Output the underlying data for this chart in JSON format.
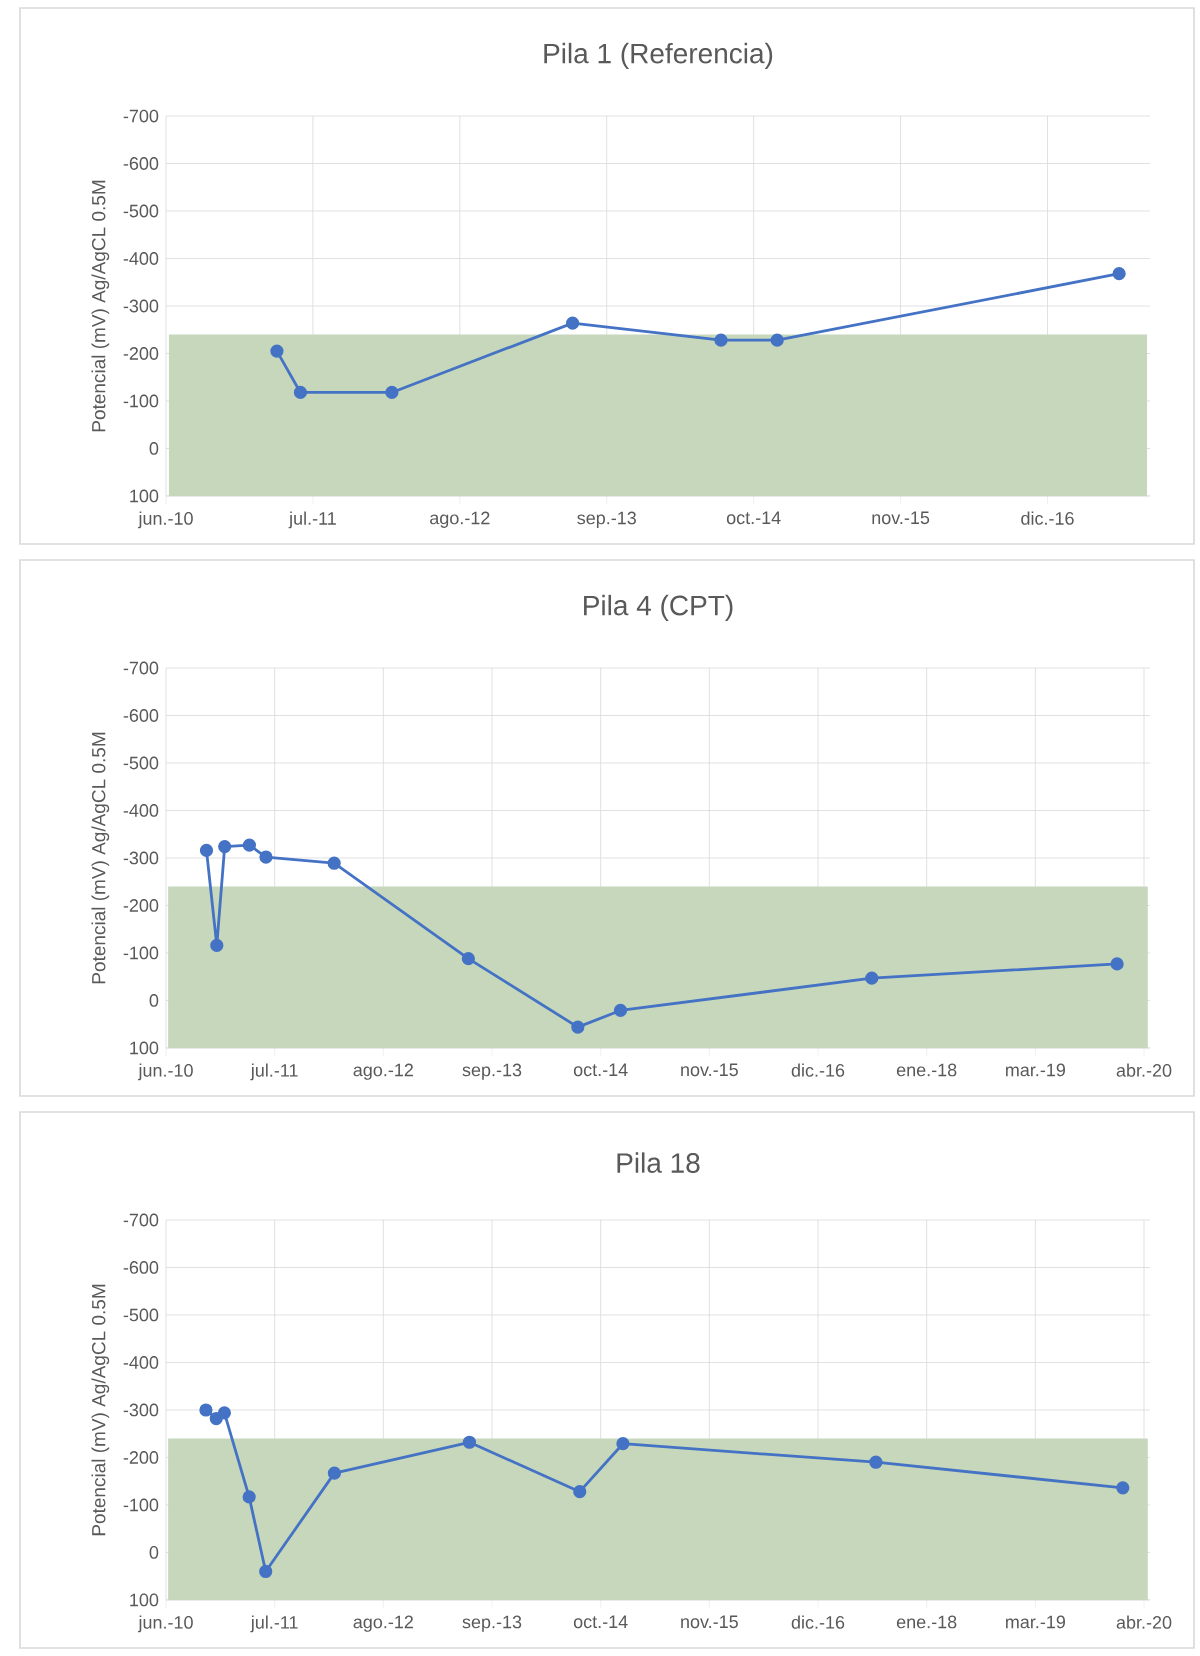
{
  "chart_data": [
    {
      "type": "line",
      "title": "Pila 1 (Referencia)",
      "ylabel": "Potencial (mV) Ag/AgCL 0.5M",
      "xlim": [
        "2010-06-01",
        "2017-10-01"
      ],
      "ylim": [
        100,
        -700
      ],
      "xticks": [
        {
          "value": "2010-06-01",
          "label": "jun.-10"
        },
        {
          "value": "2011-07-06",
          "label": "jul.-11"
        },
        {
          "value": "2012-08-09",
          "label": "ago.-12"
        },
        {
          "value": "2013-09-13",
          "label": "sep.-13"
        },
        {
          "value": "2014-10-18",
          "label": "oct.-14"
        },
        {
          "value": "2015-11-22",
          "label": "nov.-15"
        },
        {
          "value": "2016-12-26",
          "label": "dic.-16"
        }
      ],
      "yticks": [
        -700,
        -600,
        -500,
        -400,
        -300,
        -200,
        -100,
        0,
        100
      ],
      "grid": true,
      "marker": "circle",
      "bands": [
        {
          "axis": "y",
          "from": 100,
          "to": -240,
          "color": "#c6d7bb"
        }
      ],
      "series": [
        {
          "color": "#4472c4",
          "x": [
            "2011-03-30",
            "2011-06-02",
            "2012-02-06",
            "2013-06-12",
            "2014-07-21",
            "2014-12-21",
            "2017-07-09"
          ],
          "values": [
            -205,
            -118,
            -118,
            -264,
            -228,
            -228,
            -368
          ]
        }
      ]
    },
    {
      "type": "line",
      "title": "Pila 4 (CPT)",
      "ylabel": "Potencial (mV) Ag/AgCL 0.5M",
      "xlim": [
        "2010-06-01",
        "2020-05-01"
      ],
      "ylim": [
        100,
        -700
      ],
      "xticks": [
        {
          "value": "2010-06-01",
          "label": "jun.-10"
        },
        {
          "value": "2011-07-06",
          "label": "jul.-11"
        },
        {
          "value": "2012-08-09",
          "label": "ago.-12"
        },
        {
          "value": "2013-09-13",
          "label": "sep.-13"
        },
        {
          "value": "2014-10-18",
          "label": "oct.-14"
        },
        {
          "value": "2015-11-22",
          "label": "nov.-15"
        },
        {
          "value": "2016-12-26",
          "label": "dic.-16"
        },
        {
          "value": "2018-01-30",
          "label": "ene.-18"
        },
        {
          "value": "2019-03-06",
          "label": "mar.-19"
        },
        {
          "value": "2020-04-09",
          "label": "abr.-20"
        }
      ],
      "yticks": [
        -700,
        -600,
        -500,
        -400,
        -300,
        -200,
        -100,
        0,
        100
      ],
      "grid": true,
      "marker": "circle",
      "bands": [
        {
          "axis": "y",
          "from": 100,
          "to": -240,
          "color": "#c6d7bb"
        }
      ],
      "series": [
        {
          "color": "#4472c4",
          "x": [
            "2010-10-28",
            "2010-12-05",
            "2011-01-03",
            "2011-04-04",
            "2011-06-04",
            "2012-02-10",
            "2013-06-18",
            "2014-07-26",
            "2014-12-30",
            "2017-07-12",
            "2020-01-01"
          ],
          "values": [
            -316,
            -116,
            -324,
            -327,
            -302,
            -289,
            -88,
            56,
            21,
            -47,
            -77
          ]
        }
      ]
    },
    {
      "type": "line",
      "title": "Pila 18",
      "ylabel": "Potencial (mV) Ag/AgCL 0.5M",
      "xlim": [
        "2010-06-01",
        "2020-05-01"
      ],
      "ylim": [
        100,
        -700
      ],
      "xticks": [
        {
          "value": "2010-06-01",
          "label": "jun.-10"
        },
        {
          "value": "2011-07-06",
          "label": "jul.-11"
        },
        {
          "value": "2012-08-09",
          "label": "ago.-12"
        },
        {
          "value": "2013-09-13",
          "label": "sep.-13"
        },
        {
          "value": "2014-10-18",
          "label": "oct.-14"
        },
        {
          "value": "2015-11-22",
          "label": "nov.-15"
        },
        {
          "value": "2016-12-26",
          "label": "dic.-16"
        },
        {
          "value": "2018-01-30",
          "label": "ene.-18"
        },
        {
          "value": "2019-03-06",
          "label": "mar.-19"
        },
        {
          "value": "2020-04-09",
          "label": "abr.-20"
        }
      ],
      "yticks": [
        -700,
        -600,
        -500,
        -400,
        -300,
        -200,
        -100,
        0,
        100
      ],
      "grid": true,
      "marker": "circle",
      "bands": [
        {
          "axis": "y",
          "from": 100,
          "to": -240,
          "color": "#c6d7bb"
        }
      ],
      "series": [
        {
          "color": "#4472c4",
          "x": [
            "2010-10-26",
            "2010-12-03",
            "2011-01-02",
            "2011-04-03",
            "2011-06-03",
            "2012-02-11",
            "2013-06-22",
            "2014-08-02",
            "2015-01-08",
            "2017-07-27",
            "2020-01-22"
          ],
          "values": [
            -300,
            -282,
            -294,
            -117,
            40,
            -167,
            -232,
            -128,
            -229,
            -190,
            -136
          ]
        }
      ]
    }
  ]
}
